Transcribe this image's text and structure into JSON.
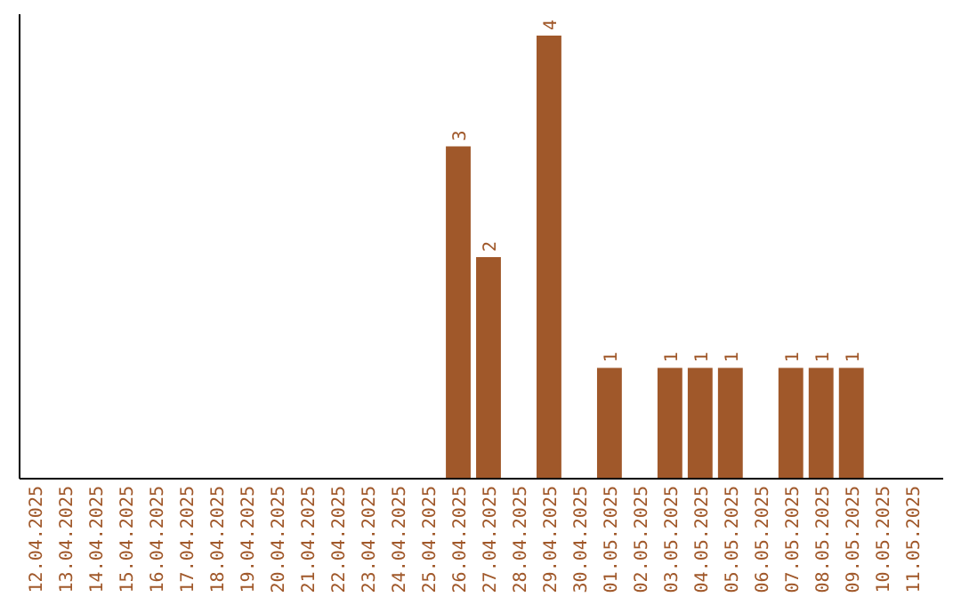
{
  "chart_data": {
    "type": "bar",
    "categories": [
      "12.04.2025",
      "13.04.2025",
      "14.04.2025",
      "15.04.2025",
      "16.04.2025",
      "17.04.2025",
      "18.04.2025",
      "19.04.2025",
      "20.04.2025",
      "21.04.2025",
      "22.04.2025",
      "23.04.2025",
      "24.04.2025",
      "25.04.2025",
      "26.04.2025",
      "27.04.2025",
      "28.04.2025",
      "29.04.2025",
      "30.04.2025",
      "01.05.2025",
      "02.05.2025",
      "03.05.2025",
      "04.05.2025",
      "05.05.2025",
      "06.05.2025",
      "07.05.2025",
      "08.05.2025",
      "09.05.2025",
      "10.05.2025",
      "11.05.2025"
    ],
    "values": [
      null,
      null,
      null,
      null,
      null,
      null,
      null,
      null,
      null,
      null,
      null,
      null,
      null,
      null,
      3,
      2,
      null,
      4,
      null,
      1,
      null,
      1,
      1,
      1,
      null,
      1,
      1,
      1,
      null,
      null
    ],
    "data_labels": true,
    "color": "#a0582a"
  }
}
